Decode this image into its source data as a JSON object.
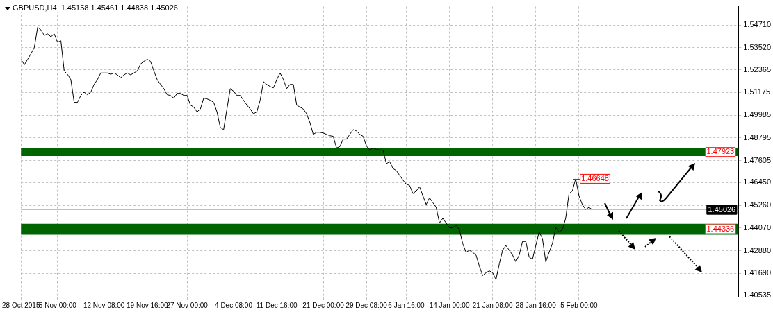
{
  "chart_data": {
    "type": "line",
    "title": "GBPUSD,H4  1.45158 1.45461 1.44838 1.45026",
    "categories": [
      "28 Oct 2015",
      null,
      null,
      null,
      null,
      null,
      null,
      null,
      null,
      null,
      null,
      "5 Nov 00:00",
      null,
      null,
      null,
      null,
      null,
      null,
      null,
      null,
      null,
      null,
      null,
      null,
      null,
      "12 Nov 08:00",
      null,
      null,
      null,
      null,
      null,
      null,
      null,
      null,
      null,
      null,
      null,
      null,
      "19 Nov 16:00",
      null,
      null,
      null,
      null,
      null,
      null,
      null,
      null,
      null,
      null,
      null,
      "27 Nov 00:00",
      null,
      null,
      null,
      null,
      null,
      null,
      null,
      null,
      null,
      null,
      null,
      null,
      null,
      "4 Dec 08:00",
      null,
      null,
      null,
      null,
      null,
      null,
      null,
      null,
      null,
      null,
      null,
      null,
      "11 Dec 16:00",
      null,
      null,
      null,
      null,
      null,
      null,
      null,
      null,
      null,
      null,
      null,
      null,
      null,
      "21 Dec 00:00",
      null,
      null,
      null,
      null,
      null,
      null,
      null,
      null,
      null,
      null,
      null,
      null,
      "29 Dec 08:00",
      null,
      null,
      null,
      null,
      null,
      null,
      null,
      null,
      null,
      null,
      null,
      "6 Jan 16:00",
      null,
      null,
      null,
      null,
      null,
      null,
      null,
      null,
      null,
      null,
      null,
      null,
      "14 Jan 00:00",
      null,
      null,
      null,
      null,
      null,
      null,
      null,
      null,
      null,
      null,
      null,
      null,
      "21 Jan 08:00",
      null,
      null,
      null,
      null,
      null,
      null,
      null,
      null,
      null,
      null,
      null,
      null,
      "28 Jan 16:00",
      null,
      null,
      null,
      null,
      null,
      null,
      null,
      null,
      null,
      null,
      null,
      null,
      "5 Feb 00:00",
      null,
      null,
      null,
      null,
      null,
      null,
      null,
      null,
      null,
      null,
      null,
      null,
      null,
      null,
      null,
      null,
      null,
      null,
      null,
      null,
      null,
      null,
      null,
      null,
      null,
      null,
      null,
      null,
      null,
      null,
      null,
      null,
      null,
      null,
      null,
      null,
      null,
      null,
      null,
      null,
      null,
      null,
      null,
      null,
      null,
      null,
      null,
      null
    ],
    "ylim": [
      1.4046,
      1.5568
    ],
    "yticks": [
      {
        "value": 1.5471,
        "label": "1.54710"
      },
      {
        "value": 1.5352,
        "label": "1.53520"
      },
      {
        "value": 1.52365,
        "label": "1.52365"
      },
      {
        "value": 1.51175,
        "label": "1.51175"
      },
      {
        "value": 1.49985,
        "label": "1.49985"
      },
      {
        "value": 1.48795,
        "label": "1.48795"
      },
      {
        "value": 1.47605,
        "label": "1.47605"
      },
      {
        "value": 1.4645,
        "label": "1.46450"
      },
      {
        "value": 1.4526,
        "label": "1.45260"
      },
      {
        "value": 1.4407,
        "label": "1.44070"
      },
      {
        "value": 1.4288,
        "label": "1.42880"
      },
      {
        "value": 1.4169,
        "label": "1.41690"
      },
      {
        "value": 1.40535,
        "label": "1.40535"
      }
    ],
    "grid": true,
    "legend": false,
    "series": [
      {
        "color": "#000000",
        "values": [
          1.5292,
          1.5263,
          1.5292,
          1.5321,
          1.5353,
          1.546,
          1.5446,
          1.5417,
          1.5425,
          1.541,
          1.5425,
          1.5381,
          1.5389,
          1.5231,
          1.5213,
          1.5185,
          1.5066,
          1.5066,
          1.5102,
          1.5119,
          1.5106,
          1.5119,
          1.516,
          1.5185,
          1.522,
          1.522,
          1.522,
          1.5213,
          1.522,
          1.521,
          1.5195,
          1.521,
          1.522,
          1.521,
          1.522,
          1.5231,
          1.5267,
          1.5281,
          1.5292,
          1.5281,
          1.5231,
          1.5185,
          1.516,
          1.5138,
          1.5106,
          1.5102,
          1.5088,
          1.5113,
          1.5113,
          1.5102,
          1.5102,
          1.5052,
          1.5041,
          1.5016,
          1.5031,
          1.5088,
          1.5084,
          1.5077,
          1.5066,
          1.5016,
          1.4934,
          1.4923,
          1.5031,
          1.5138,
          1.5124,
          1.5102,
          1.5102,
          1.5077,
          1.5052,
          1.5031,
          1.5006,
          1.5016,
          1.5077,
          1.5174,
          1.516,
          1.5149,
          1.5142,
          1.5185,
          1.522,
          1.5185,
          1.5138,
          1.516,
          1.516,
          1.5052,
          1.5041,
          1.5031,
          1.5006,
          1.4959,
          1.4898,
          1.4909,
          1.4909,
          1.4905,
          1.4898,
          1.4891,
          1.4888,
          1.4827,
          1.4834,
          1.4873,
          1.4873,
          1.4898,
          1.4923,
          1.4916,
          1.4898,
          1.4888,
          1.4837,
          1.4816,
          1.4827,
          1.4819,
          1.4816,
          1.4816,
          1.4744,
          1.4755,
          1.4719,
          1.4708,
          1.4683,
          1.4658,
          1.4637,
          1.463,
          1.4587,
          1.4601,
          1.4623,
          1.4576,
          1.453,
          1.4565,
          1.454,
          1.4515,
          1.4433,
          1.4458,
          1.4433,
          1.4408,
          1.4408,
          1.4422,
          1.4397,
          1.4325,
          1.4279,
          1.429,
          1.4279,
          1.4265,
          1.4207,
          1.4157,
          1.4172,
          1.4182,
          1.4172,
          1.4136,
          1.4218,
          1.429,
          1.4315,
          1.429,
          1.4265,
          1.4229,
          1.4265,
          1.4336,
          1.4336,
          1.4254,
          1.4243,
          1.4315,
          1.4386,
          1.4351,
          1.4229,
          1.4279,
          1.4325,
          1.4408,
          1.4386,
          1.4397,
          1.4458,
          1.4587,
          1.4601,
          1.46648,
          1.4576,
          1.453,
          1.4504,
          1.4515,
          1.4503,
          null,
          null,
          null,
          null,
          null,
          null,
          null,
          null,
          null,
          null,
          null,
          null,
          null,
          null,
          null,
          null,
          null,
          null,
          null,
          null,
          null,
          null,
          null,
          null,
          null,
          null,
          null,
          null,
          null,
          null,
          null,
          null,
          null,
          null,
          null,
          null,
          null,
          null,
          null,
          null,
          null,
          null,
          null,
          null
        ],
        "value_labels": [
          null,
          null,
          null,
          null,
          null,
          null,
          null,
          null,
          null,
          null,
          null,
          null,
          null,
          null,
          null,
          null,
          null,
          null,
          null,
          null,
          null,
          null,
          null,
          null,
          null,
          null,
          null,
          null,
          null,
          null,
          null,
          null,
          null,
          null,
          null,
          null,
          null,
          null,
          null,
          null,
          null,
          null,
          null,
          null,
          null,
          null,
          null,
          null,
          null,
          null,
          null,
          null,
          null,
          null,
          null,
          null,
          null,
          null,
          null,
          null,
          null,
          null,
          null,
          null,
          null,
          null,
          null,
          null,
          null,
          null,
          null,
          null,
          null,
          null,
          null,
          null,
          null,
          null,
          null,
          null,
          null,
          null,
          null,
          null,
          null,
          null,
          null,
          null,
          null,
          null,
          null,
          null,
          null,
          null,
          null,
          null,
          null,
          null,
          null,
          null,
          null,
          null,
          null,
          null,
          null,
          null,
          null,
          null,
          null,
          null,
          null,
          null,
          null,
          null,
          null,
          null,
          null,
          null,
          null,
          null,
          null,
          null,
          null,
          null,
          null,
          null,
          null,
          null,
          null,
          null,
          null,
          null,
          null,
          null,
          null,
          null,
          null,
          null,
          null,
          null,
          null,
          null,
          null,
          null,
          null,
          null,
          null,
          null,
          null,
          null,
          null,
          null,
          null,
          null,
          null,
          null,
          null,
          null,
          null,
          null,
          null,
          null,
          null,
          null,
          null,
          null,
          null,
          "1.46648",
          null,
          null,
          null,
          null,
          null,
          null,
          null,
          null,
          null,
          null,
          null,
          null,
          null,
          null,
          null,
          null,
          null,
          null,
          null,
          null,
          null,
          null,
          null,
          null,
          null,
          null,
          null,
          null,
          null,
          null,
          null,
          null,
          null,
          null,
          null,
          null,
          null,
          null,
          null,
          null,
          null,
          null,
          null,
          null,
          null,
          null,
          null,
          null,
          null
        ]
      }
    ],
    "bands": [
      {
        "axis": "y",
        "from": 1.4784,
        "to": 1.4827,
        "label": "1.47923",
        "color": "#006400"
      },
      {
        "axis": "y",
        "from": 1.4372,
        "to": 1.4429,
        "label": "1.44336",
        "color": "#006400"
      }
    ],
    "ref_lines": [
      {
        "axis": "y",
        "value": 1.45026,
        "label": "1.45026",
        "color": "#c0c0c0",
        "line_style": "solid"
      }
    ]
  }
}
